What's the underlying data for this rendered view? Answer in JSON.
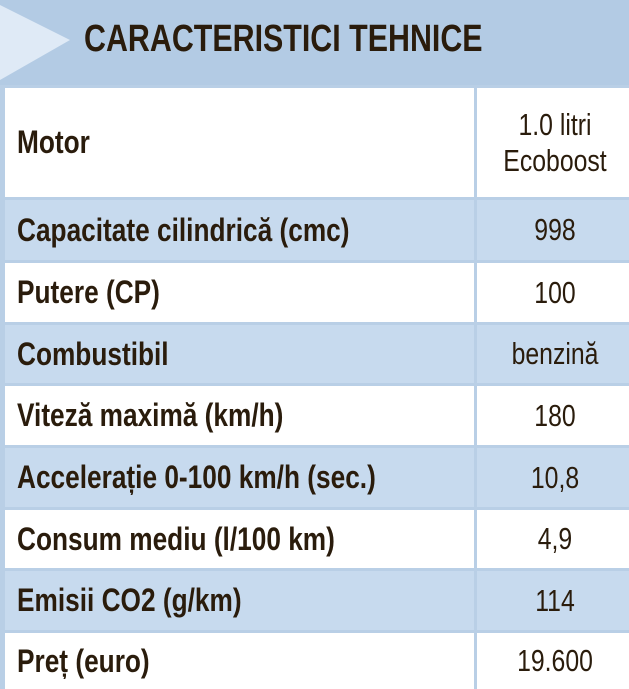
{
  "header": {
    "title": "CARACTERISTICI TEHNICE"
  },
  "table": {
    "rows": [
      [
        "Motor",
        "1.0 litri Ecoboost"
      ],
      [
        "Capacitate cilindrică (cmc)",
        "998"
      ],
      [
        "Putere (CP)",
        "100"
      ],
      [
        "Combustibil",
        "benzină"
      ],
      [
        "Viteză maximă (km/h)",
        "180"
      ],
      [
        "Accelerație 0-100 km/h (sec.)",
        "10,8"
      ],
      [
        "Consum mediu (l/100 km)",
        "4,9"
      ],
      [
        "Emisii CO2 (g/km)",
        "114"
      ],
      [
        "Preț (euro)",
        "19.600"
      ]
    ]
  }
}
